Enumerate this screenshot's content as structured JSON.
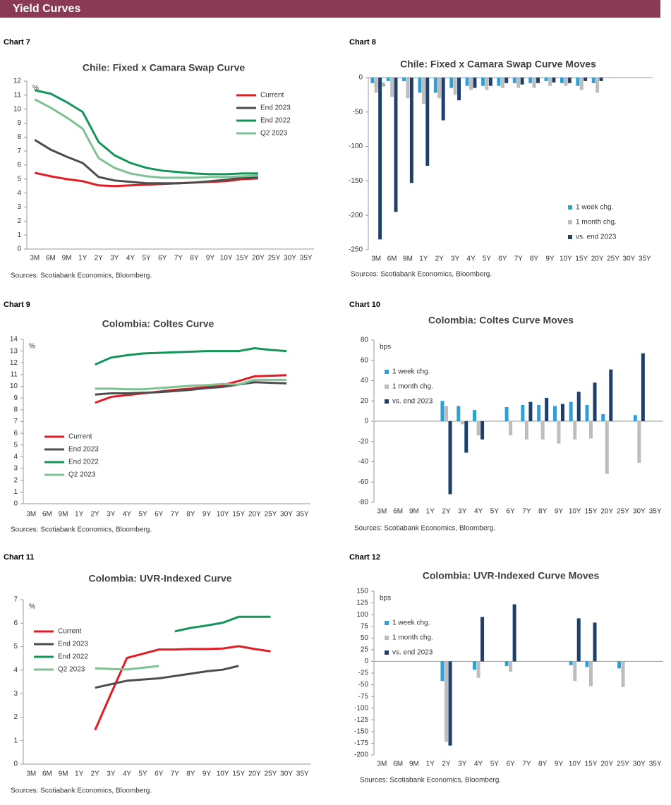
{
  "header": {
    "title": "Yield Curves"
  },
  "chart_data": [
    {
      "type": "line",
      "chart_label": "Chart 7",
      "title": "Chile:  Fixed x Camara Swap Curve",
      "ylabel": "%",
      "source": "Sources: Scotiabank Economics, Bloomberg.",
      "categories": [
        "3M",
        "6M",
        "9M",
        "1Y",
        "2Y",
        "3Y",
        "4Y",
        "5Y",
        "6Y",
        "7Y",
        "8Y",
        "9Y",
        "10Y",
        "15Y",
        "20Y",
        "25Y",
        "30Y",
        "35Y"
      ],
      "ylim": [
        0,
        12
      ],
      "yticks": [
        0,
        1,
        2,
        3,
        4,
        5,
        6,
        7,
        8,
        9,
        10,
        11,
        12
      ],
      "legend": "upper right",
      "series": [
        {
          "name": "Current",
          "color": "#e31b23",
          "values": [
            5.45,
            5.2,
            5.0,
            4.85,
            4.55,
            4.5,
            4.55,
            4.6,
            4.65,
            4.7,
            4.75,
            4.8,
            4.85,
            5.0,
            5.05,
            null,
            null,
            null
          ]
        },
        {
          "name": "End 2023",
          "color": "#4d4d4d",
          "values": [
            7.8,
            7.1,
            6.6,
            6.15,
            5.15,
            4.9,
            4.8,
            4.7,
            4.7,
            4.7,
            4.75,
            4.85,
            4.95,
            5.1,
            5.1,
            null,
            null,
            null
          ]
        },
        {
          "name": "End 2022",
          "color": "#13955a",
          "values": [
            11.35,
            11.1,
            10.5,
            9.8,
            7.65,
            6.7,
            6.15,
            5.8,
            5.6,
            5.5,
            5.4,
            5.35,
            5.35,
            5.4,
            5.4,
            null,
            null,
            null
          ]
        },
        {
          "name": "Q2 2023",
          "color": "#7ec294",
          "values": [
            10.7,
            10.1,
            9.4,
            8.6,
            6.5,
            5.8,
            5.4,
            5.2,
            5.1,
            5.1,
            5.1,
            5.15,
            5.15,
            5.2,
            5.25,
            null,
            null,
            null
          ]
        }
      ]
    },
    {
      "type": "bar",
      "chart_label": "Chart 8",
      "title": "Chile:  Fixed x Camara Swap Curve Moves",
      "ylabel": "bps",
      "source": "Sources: Scotiabank Economics, Bloomberg.",
      "categories": [
        "3M",
        "6M",
        "9M",
        "1Y",
        "2Y",
        "3Y",
        "4Y",
        "5Y",
        "6Y",
        "7Y",
        "8Y",
        "9Y",
        "10Y",
        "15Y",
        "20Y",
        "25Y",
        "30Y",
        "35Y"
      ],
      "ylim": [
        -250,
        0
      ],
      "yticks": [
        -250,
        -200,
        -150,
        -100,
        -50,
        0
      ],
      "legend": "lower right",
      "series": [
        {
          "name": "1 week chg.",
          "color": "#2f9fd8",
          "values": [
            -8,
            -5,
            -5,
            -22,
            -22,
            -15,
            -12,
            -12,
            -12,
            -8,
            -8,
            -5,
            -8,
            -12,
            -8,
            null,
            null,
            null
          ]
        },
        {
          "name": "1 month chg.",
          "color": "#bdbdbd",
          "values": [
            -22,
            -28,
            -30,
            -38,
            -30,
            -25,
            -18,
            -18,
            -15,
            -15,
            -15,
            -12,
            -12,
            -18,
            -22,
            null,
            null,
            null
          ]
        },
        {
          "name": "vs. end 2023",
          "color": "#1c3f6e",
          "values": [
            -235,
            -195,
            -153,
            -128,
            -62,
            -33,
            -15,
            -12,
            -8,
            -10,
            -8,
            -7,
            -8,
            -5,
            -5,
            null,
            null,
            null
          ]
        }
      ]
    },
    {
      "type": "line",
      "chart_label": "Chart 9",
      "title": "Colombia:  Coltes Curve",
      "ylabel": "%",
      "source": "Sources: Scotiabank Economics, Bloomberg.",
      "categories": [
        "3M",
        "6M",
        "9M",
        "1Y",
        "2Y",
        "3Y",
        "4Y",
        "5Y",
        "6Y",
        "7Y",
        "8Y",
        "9Y",
        "10Y",
        "15Y",
        "20Y",
        "25Y",
        "30Y",
        "35Y"
      ],
      "ylim": [
        0,
        14
      ],
      "yticks": [
        0,
        1,
        2,
        3,
        4,
        5,
        6,
        7,
        8,
        9,
        10,
        11,
        12,
        13,
        14
      ],
      "legend": "lower left",
      "series": [
        {
          "name": "Current",
          "color": "#e31b23",
          "values": [
            null,
            null,
            null,
            null,
            8.6,
            9.1,
            9.25,
            9.4,
            9.55,
            9.7,
            9.8,
            9.95,
            10.1,
            10.45,
            10.85,
            10.9,
            10.95,
            null
          ]
        },
        {
          "name": "End 2023",
          "color": "#4d4d4d",
          "values": [
            null,
            null,
            null,
            null,
            9.3,
            9.4,
            9.4,
            9.45,
            9.5,
            9.6,
            9.7,
            9.85,
            9.95,
            10.15,
            10.35,
            10.3,
            10.25,
            null
          ]
        },
        {
          "name": "End 2022",
          "color": "#13955a",
          "values": [
            null,
            null,
            null,
            null,
            11.85,
            12.45,
            12.65,
            12.8,
            12.85,
            12.9,
            12.95,
            13.0,
            13.0,
            13.0,
            13.25,
            13.1,
            13.0,
            null
          ]
        },
        {
          "name": "Q2 2023",
          "color": "#7ec294",
          "values": [
            null,
            null,
            null,
            null,
            9.8,
            9.8,
            9.75,
            9.75,
            9.85,
            9.95,
            10.05,
            10.1,
            10.2,
            10.15,
            10.55,
            10.55,
            10.55,
            null
          ]
        }
      ]
    },
    {
      "type": "bar",
      "chart_label": "Chart 10",
      "title": "Colombia:  Coltes Curve Moves",
      "ylabel": "bps",
      "source": "Sources: Scotiabank Economics, Bloomberg.",
      "categories": [
        "3M",
        "6M",
        "9M",
        "1Y",
        "2Y",
        "3Y",
        "4Y",
        "5Y",
        "6Y",
        "7Y",
        "8Y",
        "9Y",
        "10Y",
        "15Y",
        "20Y",
        "25Y",
        "30Y",
        "35Y"
      ],
      "ylim": [
        -80,
        80
      ],
      "yticks": [
        -80,
        -60,
        -40,
        -20,
        0,
        20,
        40,
        60,
        80
      ],
      "legend": "upper left",
      "series": [
        {
          "name": "1 week chg.",
          "color": "#2f9fd8",
          "values": [
            null,
            null,
            null,
            null,
            20,
            15,
            11,
            null,
            14,
            16,
            16,
            15,
            19,
            16,
            7,
            null,
            6,
            null
          ]
        },
        {
          "name": "1 month chg.",
          "color": "#bdbdbd",
          "values": [
            null,
            null,
            null,
            null,
            15,
            -3,
            -14,
            null,
            -14,
            -18,
            -18,
            -22,
            -18,
            -17,
            -52,
            null,
            -41,
            null
          ]
        },
        {
          "name": "vs. end 2023",
          "color": "#1c3f6e",
          "values": [
            null,
            null,
            null,
            null,
            -72,
            -31,
            -18,
            null,
            null,
            19,
            23,
            17,
            29,
            38,
            51,
            null,
            67,
            null
          ]
        }
      ]
    },
    {
      "type": "line",
      "chart_label": "Chart 11",
      "title": "Colombia:  UVR-Indexed Curve",
      "ylabel": "%",
      "source": "Sources: Scotiabank Economics, Bloomberg.",
      "categories": [
        "3M",
        "6M",
        "9M",
        "1Y",
        "2Y",
        "3Y",
        "4Y",
        "5Y",
        "6Y",
        "7Y",
        "8Y",
        "9Y",
        "10Y",
        "15Y",
        "20Y",
        "25Y",
        "30Y",
        "35Y"
      ],
      "ylim": [
        0,
        7
      ],
      "yticks": [
        0,
        1,
        2,
        3,
        4,
        5,
        6,
        7
      ],
      "legend": "upper left",
      "series": [
        {
          "name": "Current",
          "color": "#e31b23",
          "values": [
            null,
            null,
            null,
            null,
            1.45,
            3.0,
            4.52,
            4.7,
            4.88,
            4.88,
            4.9,
            4.9,
            4.92,
            5.02,
            4.9,
            4.8,
            null,
            null
          ]
        },
        {
          "name": "End 2023",
          "color": "#4d4d4d",
          "values": [
            null,
            null,
            null,
            null,
            3.25,
            3.4,
            3.55,
            3.6,
            3.65,
            3.75,
            3.85,
            3.95,
            4.02,
            4.18,
            null,
            null,
            null,
            null
          ]
        },
        {
          "name": "End 2022",
          "color": "#13955a",
          "values": [
            null,
            null,
            null,
            null,
            null,
            null,
            null,
            null,
            null,
            5.65,
            5.8,
            5.9,
            6.02,
            6.27,
            6.27,
            6.27,
            null,
            null
          ]
        },
        {
          "name": "Q2 2023",
          "color": "#7ec294",
          "values": [
            null,
            null,
            null,
            null,
            4.08,
            4.05,
            4.03,
            4.1,
            4.18,
            null,
            null,
            null,
            null,
            null,
            null,
            null,
            null,
            null
          ]
        }
      ]
    },
    {
      "type": "bar",
      "chart_label": "Chart 12",
      "title": "Colombia:  UVR-Indexed Curve Moves",
      "ylabel": "bps",
      "source": "Sources: Scotiabank Economics, Bloomberg.",
      "categories": [
        "3M",
        "6M",
        "9M",
        "1Y",
        "2Y",
        "3Y",
        "4Y",
        "5Y",
        "6Y",
        "7Y",
        "8Y",
        "9Y",
        "10Y",
        "15Y",
        "20Y",
        "25Y",
        "30Y",
        "35Y"
      ],
      "ylim": [
        -200,
        150
      ],
      "yticks": [
        -200,
        -175,
        -150,
        -125,
        -100,
        -75,
        -50,
        -25,
        0,
        25,
        50,
        75,
        100,
        125,
        150
      ],
      "legend": "upper left",
      "series": [
        {
          "name": "1 week chg.",
          "color": "#2f9fd8",
          "values": [
            null,
            null,
            null,
            null,
            -42,
            null,
            -18,
            null,
            -10,
            null,
            null,
            null,
            -8,
            -12,
            null,
            -15,
            null,
            null
          ]
        },
        {
          "name": "1 month chg.",
          "color": "#bdbdbd",
          "values": [
            null,
            null,
            null,
            null,
            -172,
            null,
            -35,
            null,
            -22,
            null,
            null,
            null,
            -42,
            -53,
            null,
            -55,
            null,
            null
          ]
        },
        {
          "name": "vs. end 2023",
          "color": "#1c3f6e",
          "values": [
            null,
            null,
            null,
            null,
            -180,
            null,
            95,
            null,
            122,
            null,
            null,
            null,
            92,
            83,
            null,
            null,
            null,
            null
          ]
        }
      ]
    }
  ]
}
